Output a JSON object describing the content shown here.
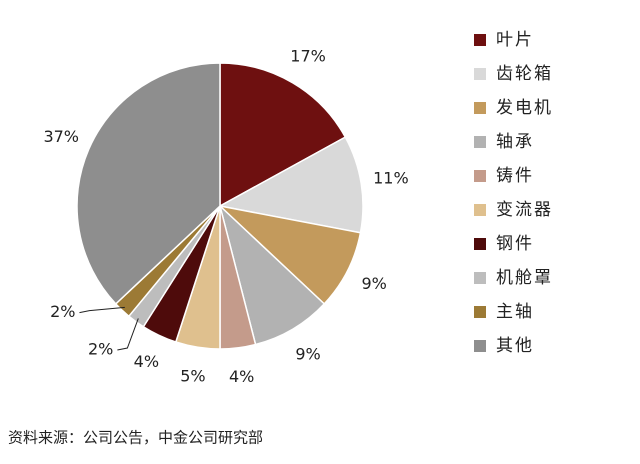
{
  "chart_data": {
    "type": "pie",
    "categories": [
      "叶片",
      "齿轮箱",
      "发电机",
      "轴承",
      "铸件",
      "变流器",
      "钢件",
      "机舱罩",
      "主轴",
      "其他"
    ],
    "values": [
      17,
      11,
      9,
      9,
      4,
      5,
      4,
      2,
      2,
      37
    ],
    "value_labels": [
      "17%",
      "11%",
      "9%",
      "9%",
      "4%",
      "5%",
      "4%",
      "2%",
      "2%",
      "37%"
    ],
    "colors": [
      "#6e1010",
      "#d9d9d9",
      "#c39a5c",
      "#b2b2b2",
      "#c49b8b",
      "#dfc08e",
      "#4e0b0b",
      "#bdbdbd",
      "#9c7a35",
      "#8e8e8e"
    ],
    "source": "资料来源：公司公告，中金公司研究部"
  }
}
